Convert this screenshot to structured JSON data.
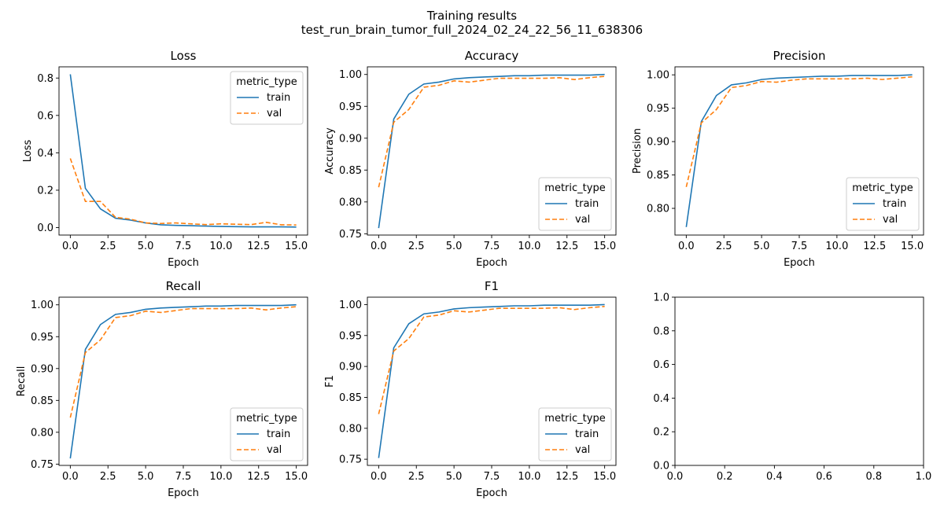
{
  "figure": {
    "title_line1": "Training results",
    "title_line2": "test_run_brain_tumor_full_2024_02_24_22_56_11_638306"
  },
  "colors": {
    "train": "#1f77b4",
    "val": "#ff7f0e",
    "frame": "#000000",
    "legend_border": "#cccccc"
  },
  "chart_data": [
    {
      "type": "line",
      "title": "Loss",
      "xlabel": "Epoch",
      "ylabel": "Loss",
      "xlim": [
        -0.75,
        15.75
      ],
      "ylim": [
        -0.04,
        0.86
      ],
      "xticks": [
        0.0,
        2.5,
        5.0,
        7.5,
        10.0,
        12.5,
        15.0
      ],
      "yticks": [
        0.0,
        0.2,
        0.4,
        0.6,
        0.8
      ],
      "legend": {
        "title": "metric_type",
        "position": "top-right"
      },
      "x": [
        0,
        1,
        2,
        3,
        4,
        5,
        6,
        7,
        8,
        9,
        10,
        11,
        12,
        13,
        14,
        15
      ],
      "series": [
        {
          "name": "train",
          "style": "solid",
          "values": [
            0.82,
            0.21,
            0.1,
            0.05,
            0.04,
            0.025,
            0.015,
            0.012,
            0.01,
            0.008,
            0.006,
            0.005,
            0.004,
            0.004,
            0.004,
            0.003
          ]
        },
        {
          "name": "val",
          "style": "dashed",
          "values": [
            0.37,
            0.14,
            0.14,
            0.055,
            0.045,
            0.025,
            0.022,
            0.025,
            0.02,
            0.016,
            0.02,
            0.018,
            0.016,
            0.028,
            0.015,
            0.014
          ]
        }
      ]
    },
    {
      "type": "line",
      "title": "Accuracy",
      "xlabel": "Epoch",
      "ylabel": "Accuracy",
      "xlim": [
        -0.75,
        15.75
      ],
      "ylim": [
        0.748,
        1.012
      ],
      "xticks": [
        0.0,
        2.5,
        5.0,
        7.5,
        10.0,
        12.5,
        15.0
      ],
      "yticks": [
        0.75,
        0.8,
        0.85,
        0.9,
        0.95,
        1.0
      ],
      "legend": {
        "title": "metric_type",
        "position": "bottom-right"
      },
      "x": [
        0,
        1,
        2,
        3,
        4,
        5,
        6,
        7,
        8,
        9,
        10,
        11,
        12,
        13,
        14,
        15
      ],
      "series": [
        {
          "name": "train",
          "style": "solid",
          "values": [
            0.759,
            0.93,
            0.969,
            0.985,
            0.988,
            0.993,
            0.995,
            0.996,
            0.997,
            0.998,
            0.998,
            0.999,
            0.999,
            0.999,
            0.999,
            1.0
          ]
        },
        {
          "name": "val",
          "style": "dashed",
          "values": [
            0.823,
            0.925,
            0.945,
            0.98,
            0.983,
            0.99,
            0.988,
            0.991,
            0.994,
            0.994,
            0.994,
            0.994,
            0.995,
            0.992,
            0.995,
            0.997
          ]
        }
      ]
    },
    {
      "type": "line",
      "title": "Precision",
      "xlabel": "Epoch",
      "ylabel": "Precision",
      "xlim": [
        -0.75,
        15.75
      ],
      "ylim": [
        0.76,
        1.012
      ],
      "xticks": [
        0.0,
        2.5,
        5.0,
        7.5,
        10.0,
        12.5,
        15.0
      ],
      "yticks": [
        0.8,
        0.85,
        0.9,
        0.95,
        1.0
      ],
      "legend": {
        "title": "metric_type",
        "position": "bottom-right"
      },
      "x": [
        0,
        1,
        2,
        3,
        4,
        5,
        6,
        7,
        8,
        9,
        10,
        11,
        12,
        13,
        14,
        15
      ],
      "series": [
        {
          "name": "train",
          "style": "solid",
          "values": [
            0.772,
            0.93,
            0.969,
            0.985,
            0.988,
            0.993,
            0.995,
            0.996,
            0.997,
            0.998,
            0.998,
            0.999,
            0.999,
            0.999,
            0.999,
            1.0
          ]
        },
        {
          "name": "val",
          "style": "dashed",
          "values": [
            0.832,
            0.928,
            0.948,
            0.981,
            0.984,
            0.99,
            0.989,
            0.992,
            0.994,
            0.994,
            0.994,
            0.994,
            0.995,
            0.993,
            0.995,
            0.997
          ]
        }
      ]
    },
    {
      "type": "line",
      "title": "Recall",
      "xlabel": "Epoch",
      "ylabel": "Recall",
      "xlim": [
        -0.75,
        15.75
      ],
      "ylim": [
        0.748,
        1.012
      ],
      "xticks": [
        0.0,
        2.5,
        5.0,
        7.5,
        10.0,
        12.5,
        15.0
      ],
      "yticks": [
        0.75,
        0.8,
        0.85,
        0.9,
        0.95,
        1.0
      ],
      "legend": {
        "title": "metric_type",
        "position": "bottom-right"
      },
      "x": [
        0,
        1,
        2,
        3,
        4,
        5,
        6,
        7,
        8,
        9,
        10,
        11,
        12,
        13,
        14,
        15
      ],
      "series": [
        {
          "name": "train",
          "style": "solid",
          "values": [
            0.759,
            0.93,
            0.969,
            0.985,
            0.988,
            0.993,
            0.995,
            0.996,
            0.997,
            0.998,
            0.998,
            0.999,
            0.999,
            0.999,
            0.999,
            1.0
          ]
        },
        {
          "name": "val",
          "style": "dashed",
          "values": [
            0.823,
            0.925,
            0.945,
            0.98,
            0.983,
            0.99,
            0.988,
            0.991,
            0.994,
            0.994,
            0.994,
            0.994,
            0.995,
            0.992,
            0.995,
            0.997
          ]
        }
      ]
    },
    {
      "type": "line",
      "title": "F1",
      "xlabel": "Epoch",
      "ylabel": "F1",
      "xlim": [
        -0.75,
        15.75
      ],
      "ylim": [
        0.74,
        1.012
      ],
      "xticks": [
        0.0,
        2.5,
        5.0,
        7.5,
        10.0,
        12.5,
        15.0
      ],
      "yticks": [
        0.75,
        0.8,
        0.85,
        0.9,
        0.95,
        1.0
      ],
      "legend": {
        "title": "metric_type",
        "position": "bottom-right"
      },
      "x": [
        0,
        1,
        2,
        3,
        4,
        5,
        6,
        7,
        8,
        9,
        10,
        11,
        12,
        13,
        14,
        15
      ],
      "series": [
        {
          "name": "train",
          "style": "solid",
          "values": [
            0.752,
            0.93,
            0.969,
            0.985,
            0.988,
            0.993,
            0.995,
            0.996,
            0.997,
            0.998,
            0.998,
            0.999,
            0.999,
            0.999,
            0.999,
            1.0
          ]
        },
        {
          "name": "val",
          "style": "dashed",
          "values": [
            0.823,
            0.925,
            0.945,
            0.98,
            0.983,
            0.99,
            0.988,
            0.991,
            0.994,
            0.994,
            0.994,
            0.994,
            0.995,
            0.992,
            0.995,
            0.997
          ]
        }
      ]
    },
    {
      "type": "line",
      "title": "",
      "xlabel": "",
      "ylabel": "",
      "xlim": [
        0.0,
        1.0
      ],
      "ylim": [
        0.0,
        1.0
      ],
      "xticks": [
        0.0,
        0.2,
        0.4,
        0.6,
        0.8,
        1.0
      ],
      "yticks": [
        0.0,
        0.2,
        0.4,
        0.6,
        0.8,
        1.0
      ],
      "series": []
    }
  ]
}
